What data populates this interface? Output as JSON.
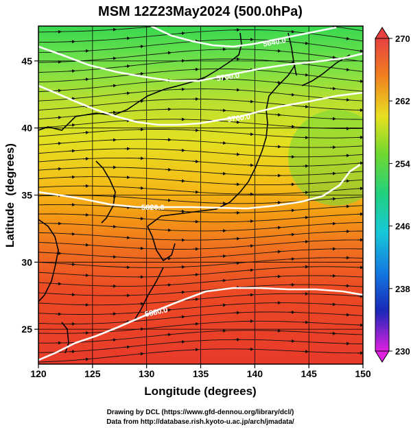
{
  "title": "MSM 12Z23May2024 (500.0hPa)",
  "axes": {
    "xlabel": "Longitude (degrees)",
    "ylabel": "Latitude  (degrees)",
    "x_ticks": [
      "120",
      "125",
      "130",
      "135",
      "140",
      "145",
      "150"
    ],
    "y_ticks": [
      "25",
      "30",
      "35",
      "40",
      "45"
    ],
    "xlim": [
      120,
      150
    ],
    "ylim": [
      22.4,
      47.6
    ]
  },
  "colorbar": {
    "ticks": [
      "270",
      "262",
      "254",
      "246",
      "238",
      "230"
    ],
    "range": [
      230,
      270
    ],
    "unit_hint": "temperature (K)"
  },
  "contours": [
    {
      "label": "5880.0",
      "color": "#ffffff"
    },
    {
      "label": "5820.0",
      "color": "#ffffff"
    },
    {
      "label": "5760.0",
      "color": "#ffffff"
    },
    {
      "label": "5700.0",
      "color": "#ffffff"
    },
    {
      "label": "5640.0",
      "color": "#ffffff"
    }
  ],
  "credits": {
    "line1": "Drawing by DCL (https://www.gfd-dennou.org/library/dcl/)",
    "line2": "Data from http://database.rish.kyoto-u.ac.jp/arch/jmadata/"
  },
  "colors": {
    "warm": "#e53a1e",
    "orange": "#f07c12",
    "yellow": "#e8e01a",
    "green": "#40d040",
    "cyan": "#18c8b8",
    "blue": "#1428c8",
    "magenta": "#e020e0"
  }
}
